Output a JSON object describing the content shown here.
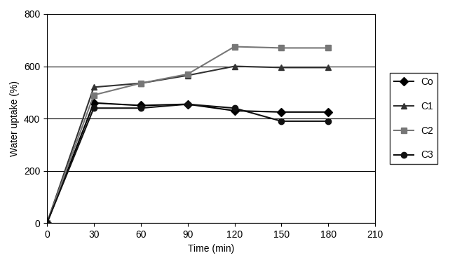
{
  "chart_data": {
    "type": "line",
    "x_label": "Time (min)",
    "y_label": "Water uptake (%)",
    "x": [
      0,
      30,
      60,
      90,
      120,
      150,
      180
    ],
    "series": [
      {
        "name": "Co",
        "color": "#000000",
        "marker": "diamond",
        "line_style": "solid",
        "values": [
          0,
          460,
          450,
          455,
          430,
          425,
          425
        ]
      },
      {
        "name": "C1",
        "color": "#333333",
        "marker": "triangle",
        "line_style": "solid",
        "values": [
          0,
          520,
          535,
          565,
          600,
          595,
          595
        ]
      },
      {
        "name": "C2",
        "color": "#777777",
        "marker": "square",
        "line_style": "solid",
        "values": [
          0,
          490,
          535,
          570,
          675,
          670,
          670
        ]
      },
      {
        "name": "C3",
        "color": "#111111",
        "marker": "circle",
        "line_style": "solid",
        "values": [
          0,
          440,
          440,
          455,
          440,
          390,
          390
        ]
      }
    ],
    "xlim": [
      0,
      210
    ],
    "xticks": [
      0,
      30,
      60,
      90,
      120,
      150,
      180,
      210
    ],
    "ylim": [
      0,
      800
    ],
    "yticks": [
      0,
      200,
      400,
      600,
      800
    ],
    "grid": true,
    "legend": "right"
  }
}
